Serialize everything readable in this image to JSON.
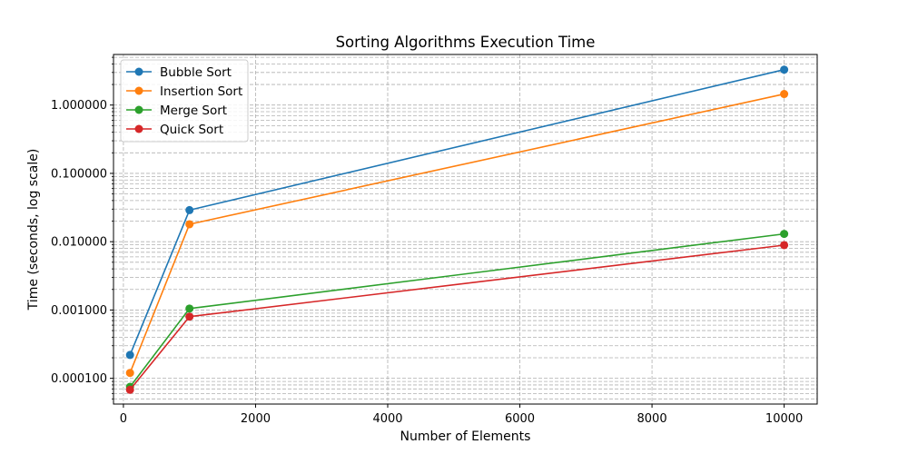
{
  "chart_data": {
    "type": "line",
    "title": "Sorting Algorithms Execution Time",
    "xlabel": "Number of Elements",
    "ylabel": "Time (seconds, log scale)",
    "x": [
      100,
      1000,
      10000
    ],
    "xlim": [
      -150,
      10500
    ],
    "ylim": [
      4.2e-05,
      5.5
    ],
    "yscale": "log",
    "xticks": [
      0,
      2000,
      4000,
      6000,
      8000,
      10000
    ],
    "xtick_labels": [
      "0",
      "2000",
      "4000",
      "6000",
      "8000",
      "10000"
    ],
    "yticks": [
      0.0001,
      0.001,
      0.01,
      0.1,
      1.0
    ],
    "ytick_labels": [
      "0.000100",
      "0.001000",
      "0.010000",
      "0.100000",
      "1.000000"
    ],
    "grid": true,
    "grid_style": "dashed",
    "legend_position": "top-left",
    "series": [
      {
        "name": "Bubble Sort",
        "color": "#1f77b4",
        "values": [
          0.00022,
          0.029,
          3.3
        ]
      },
      {
        "name": "Insertion Sort",
        "color": "#ff7f0e",
        "values": [
          0.00012,
          0.018,
          1.45
        ]
      },
      {
        "name": "Merge Sort",
        "color": "#2ca02c",
        "values": [
          7.5e-05,
          0.00105,
          0.013
        ]
      },
      {
        "name": "Quick Sort",
        "color": "#d62728",
        "values": [
          6.8e-05,
          0.0008,
          0.0089
        ]
      }
    ]
  }
}
